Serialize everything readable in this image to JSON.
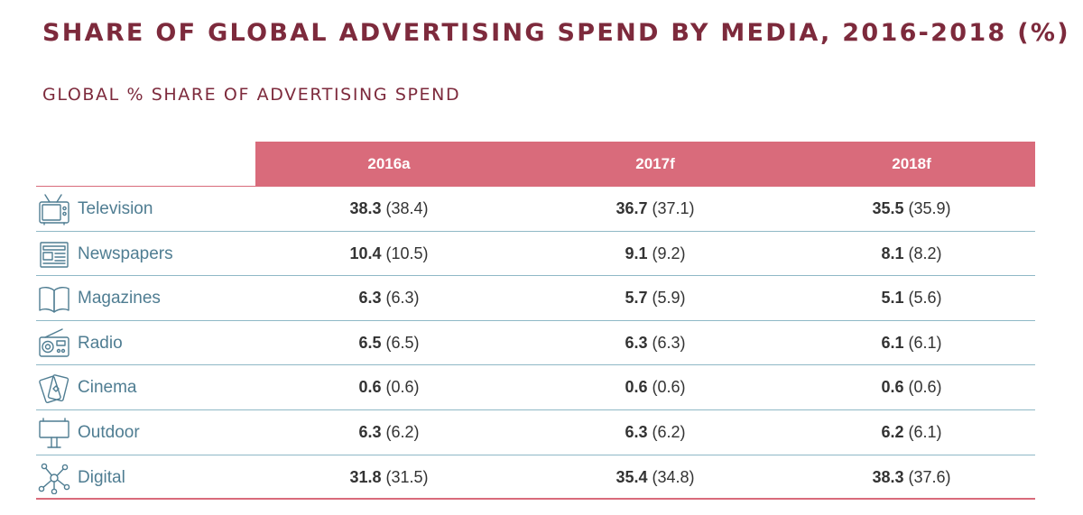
{
  "chart_data": {
    "type": "table",
    "title": "SHARE OF GLOBAL ADVERTISING SPEND BY MEDIA, 2016-2018 (%)",
    "subtitle": "GLOBAL % SHARE OF ADVERTISING SPEND",
    "columns": [
      "2016a",
      "2017f",
      "2018f"
    ],
    "rows": [
      {
        "label": "Television",
        "icon": "television-icon",
        "cells": [
          {
            "value": "38.3",
            "prev": "(38.4)"
          },
          {
            "value": "36.7",
            "prev": "(37.1)"
          },
          {
            "value": "35.5",
            "prev": "(35.9)"
          }
        ]
      },
      {
        "label": "Newspapers",
        "icon": "newspaper-icon",
        "cells": [
          {
            "value": "10.4",
            "prev": "(10.5)"
          },
          {
            "value": "9.1",
            "prev": "(9.2)"
          },
          {
            "value": "8.1",
            "prev": "(8.2)"
          }
        ]
      },
      {
        "label": "Magazines",
        "icon": "magazine-icon",
        "cells": [
          {
            "value": "6.3",
            "prev": "(6.3)"
          },
          {
            "value": "5.7",
            "prev": "(5.9)"
          },
          {
            "value": "5.1",
            "prev": "(5.6)"
          }
        ]
      },
      {
        "label": "Radio",
        "icon": "radio-icon",
        "cells": [
          {
            "value": "6.5",
            "prev": "(6.5)"
          },
          {
            "value": "6.3",
            "prev": "(6.3)"
          },
          {
            "value": "6.1",
            "prev": "(6.1)"
          }
        ]
      },
      {
        "label": "Cinema",
        "icon": "cinema-ticket-icon",
        "cells": [
          {
            "value": "0.6",
            "prev": "(0.6)"
          },
          {
            "value": "0.6",
            "prev": "(0.6)"
          },
          {
            "value": "0.6",
            "prev": "(0.6)"
          }
        ]
      },
      {
        "label": "Outdoor",
        "icon": "billboard-icon",
        "cells": [
          {
            "value": "6.3",
            "prev": "(6.2)"
          },
          {
            "value": "6.3",
            "prev": "(6.2)"
          },
          {
            "value": "6.2",
            "prev": "(6.1)"
          }
        ]
      },
      {
        "label": "Digital",
        "icon": "network-icon",
        "cells": [
          {
            "value": "31.8",
            "prev": "(31.5)"
          },
          {
            "value": "35.4",
            "prev": "(34.8)"
          },
          {
            "value": "38.3",
            "prev": "(37.6)"
          }
        ]
      }
    ]
  },
  "colors": {
    "title": "#7d2a3c",
    "header_band": "#d96b7b",
    "label": "#4f7d92",
    "row_divider": "#8fb8c6",
    "value_text": "#333333"
  }
}
